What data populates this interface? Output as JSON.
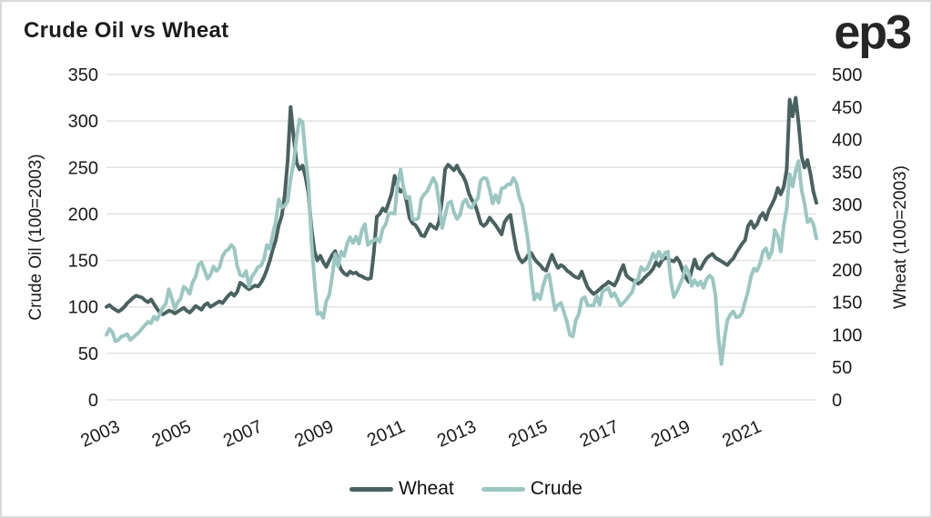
{
  "page": {
    "logo": "ep3"
  },
  "colors": {
    "wheat_line": "#4a625f",
    "crude_line": "#9cc7c1",
    "gridline": "#e3e3e3",
    "text": "#1b1b1b",
    "background": "#ffffff",
    "frame_border": "#d9d9d9"
  },
  "chart_data": {
    "type": "line",
    "title": "Crude Oil vs Wheat",
    "grid": "horizontal",
    "legend_position": "bottom-center",
    "x": {
      "start_year": 2003,
      "end_year": 2022,
      "points_per_year": 12,
      "tick_years": [
        "2003",
        "2005",
        "2007",
        "2009",
        "2011",
        "2013",
        "2015",
        "2017",
        "2019",
        "2021"
      ]
    },
    "axes": {
      "left": {
        "label": "Crude Oil (100=2003)",
        "min": 0,
        "max": 350,
        "ticks": [
          0,
          50,
          100,
          150,
          200,
          250,
          300,
          350
        ]
      },
      "right": {
        "label": "Wheat (100=2003)",
        "min": 0,
        "max": 500,
        "ticks": [
          0,
          50,
          100,
          150,
          200,
          250,
          300,
          350,
          400,
          450,
          500
        ]
      }
    },
    "series": [
      {
        "name": "Wheat",
        "axis": "left",
        "color": "#4a625f",
        "values": [
          100,
          102,
          99,
          97,
          95,
          97,
          100,
          104,
          107,
          110,
          112,
          111,
          110,
          107,
          105,
          108,
          103,
          98,
          94,
          92,
          94,
          96,
          95,
          93,
          95,
          97,
          99,
          96,
          94,
          97,
          101,
          99,
          97,
          102,
          104,
          100,
          102,
          104,
          106,
          104,
          108,
          112,
          115,
          112,
          116,
          126,
          124,
          121,
          119,
          121,
          123,
          122,
          126,
          132,
          140,
          150,
          162,
          172,
          188,
          198,
          220,
          258,
          315,
          283,
          255,
          248,
          252,
          240,
          222,
          185,
          160,
          150,
          155,
          148,
          143,
          150,
          156,
          160,
          148,
          140,
          136,
          134,
          138,
          136,
          137,
          134,
          133,
          131,
          130,
          131,
          158,
          197,
          200,
          206,
          203,
          212,
          222,
          241,
          229,
          224,
          227,
          214,
          196,
          190,
          188,
          183,
          177,
          176,
          183,
          189,
          186,
          184,
          192,
          216,
          248,
          253,
          250,
          247,
          252,
          245,
          241,
          234,
          222,
          215,
          211,
          201,
          190,
          187,
          190,
          196,
          192,
          188,
          183,
          178,
          191,
          196,
          199,
          179,
          161,
          152,
          148,
          151,
          156,
          158,
          152,
          148,
          145,
          141,
          139,
          148,
          156,
          148,
          142,
          145,
          143,
          139,
          137,
          134,
          132,
          131,
          138,
          129,
          121,
          117,
          114,
          116,
          119,
          122,
          124,
          127,
          125,
          123,
          129,
          138,
          145,
          134,
          131,
          129,
          127,
          125,
          127,
          131,
          134,
          137,
          141,
          148,
          144,
          150,
          153,
          152,
          150,
          149,
          153,
          148,
          139,
          132,
          127,
          139,
          151,
          142,
          141,
          147,
          152,
          155,
          157,
          153,
          151,
          149,
          147,
          145,
          149,
          152,
          158,
          163,
          168,
          172,
          187,
          192,
          185,
          189,
          197,
          201,
          194,
          204,
          210,
          217,
          228,
          221,
          229,
          248,
          323,
          305,
          325,
          298,
          262,
          250,
          258,
          243,
          224,
          212
        ]
      },
      {
        "name": "Crude",
        "axis": "right",
        "color": "#9cc7c1",
        "values": [
          100,
          109,
          104,
          90,
          92,
          97,
          99,
          101,
          92,
          96,
          100,
          104,
          110,
          115,
          120,
          118,
          128,
          123,
          132,
          142,
          148,
          170,
          156,
          140,
          150,
          156,
          174,
          170,
          163,
          181,
          189,
          208,
          211,
          199,
          186,
          192,
          205,
          198,
          203,
          220,
          228,
          231,
          238,
          233,
          206,
          192,
          190,
          198,
          174,
          190,
          196,
          204,
          206,
          216,
          238,
          232,
          255,
          274,
          308,
          296,
          298,
          305,
          340,
          364,
          404,
          431,
          427,
          374,
          334,
          244,
          184,
          132,
          134,
          126,
          152,
          161,
          190,
          224,
          205,
          228,
          221,
          240,
          250,
          241,
          251,
          240,
          261,
          270,
          238,
          243,
          245,
          248,
          243,
          263,
          270,
          286,
          287,
          286,
          331,
          354,
          325,
          310,
          312,
          278,
          277,
          279,
          309,
          316,
          321,
          331,
          341,
          332,
          302,
          264,
          284,
          302,
          305,
          288,
          278,
          284,
          303,
          308,
          297,
          295,
          304,
          309,
          337,
          341,
          340,
          323,
          302,
          315,
          303,
          325,
          326,
          331,
          331,
          341,
          333,
          311,
          299,
          271,
          242,
          190,
          154,
          163,
          155,
          175,
          190,
          193,
          165,
          138,
          146,
          149,
          135,
          120,
          100,
          97,
          122,
          132,
          155,
          158,
          145,
          145,
          145,
          160,
          146,
          167,
          169,
          172,
          159,
          164,
          155,
          145,
          149,
          154,
          160,
          166,
          182,
          186,
          204,
          199,
          202,
          212,
          225,
          217,
          228,
          217,
          226,
          228,
          183,
          158,
          166,
          177,
          188,
          205,
          195,
          175,
          184,
          176,
          182,
          172,
          185,
          191,
          187,
          162,
          97,
          55,
          92,
          122,
          131,
          136,
          127,
          128,
          134,
          151,
          167,
          190,
          202,
          198,
          209,
          228,
          233,
          218,
          228,
          261,
          252,
          228,
          268,
          294,
          347,
          328,
          352,
          367,
          323,
          302,
          273,
          278,
          270,
          248
        ]
      }
    ]
  }
}
